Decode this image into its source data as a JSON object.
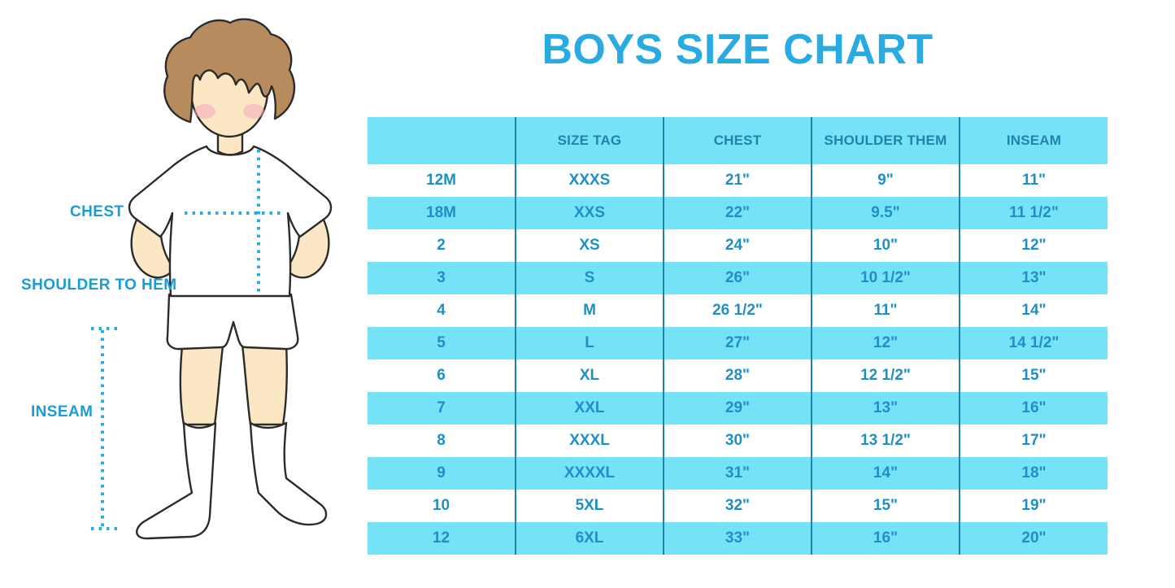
{
  "title": "BOYS SIZE CHART",
  "figure": {
    "description": "Illustration of a boy in a white t-shirt, shorts and knee-high socks with dotted measurement guides",
    "labels": {
      "chest": "CHEST",
      "shoulder_to_hem": "SHOULDER TO HEM",
      "inseam": "INSEAM"
    }
  },
  "chart_data": {
    "type": "table",
    "title": "BOYS SIZE CHART",
    "columns": [
      "",
      "SIZE TAG",
      "CHEST",
      "SHOULDER THEM",
      "INSEAM"
    ],
    "rows": [
      [
        "12M",
        "XXXS",
        "21\"",
        "9\"",
        "11\""
      ],
      [
        "18M",
        "XXS",
        "22\"",
        "9.5\"",
        "11 1/2\""
      ],
      [
        "2",
        "XS",
        "24\"",
        "10\"",
        "12\""
      ],
      [
        "3",
        "S",
        "26\"",
        "10 1/2\"",
        "13\""
      ],
      [
        "4",
        "M",
        "26 1/2\"",
        "11\"",
        "14\""
      ],
      [
        "5",
        "L",
        "27\"",
        "12\"",
        "14 1/2\""
      ],
      [
        "6",
        "XL",
        "28\"",
        "12 1/2\"",
        "15\""
      ],
      [
        "7",
        "XXL",
        "29\"",
        "13\"",
        "16\""
      ],
      [
        "8",
        "XXXL",
        "30\"",
        "13 1/2\"",
        "17\""
      ],
      [
        "9",
        "XXXXL",
        "31\"",
        "14\"",
        "18\""
      ],
      [
        "10",
        "5XL",
        "32\"",
        "15\"",
        "19\""
      ],
      [
        "12",
        "6XL",
        "33\"",
        "16\"",
        "20\""
      ]
    ],
    "row_shading": "alternating, header and even rows light blue",
    "legend_position": "none",
    "grid": "vertical dividers only"
  },
  "colors": {
    "accent": "#29ABE2",
    "table_row_fill": "#76E2F8",
    "table_divider": "#1E82AC",
    "cell_text": "#1E90C5",
    "header_text": "#2282AC",
    "label_text": "#1B9CD8",
    "dotted_line": "#29ABE2",
    "hair": "#B68C5F",
    "skin": "#FBE7C4",
    "blush": "#F4A8BB",
    "outline": "#2B2B2B"
  }
}
